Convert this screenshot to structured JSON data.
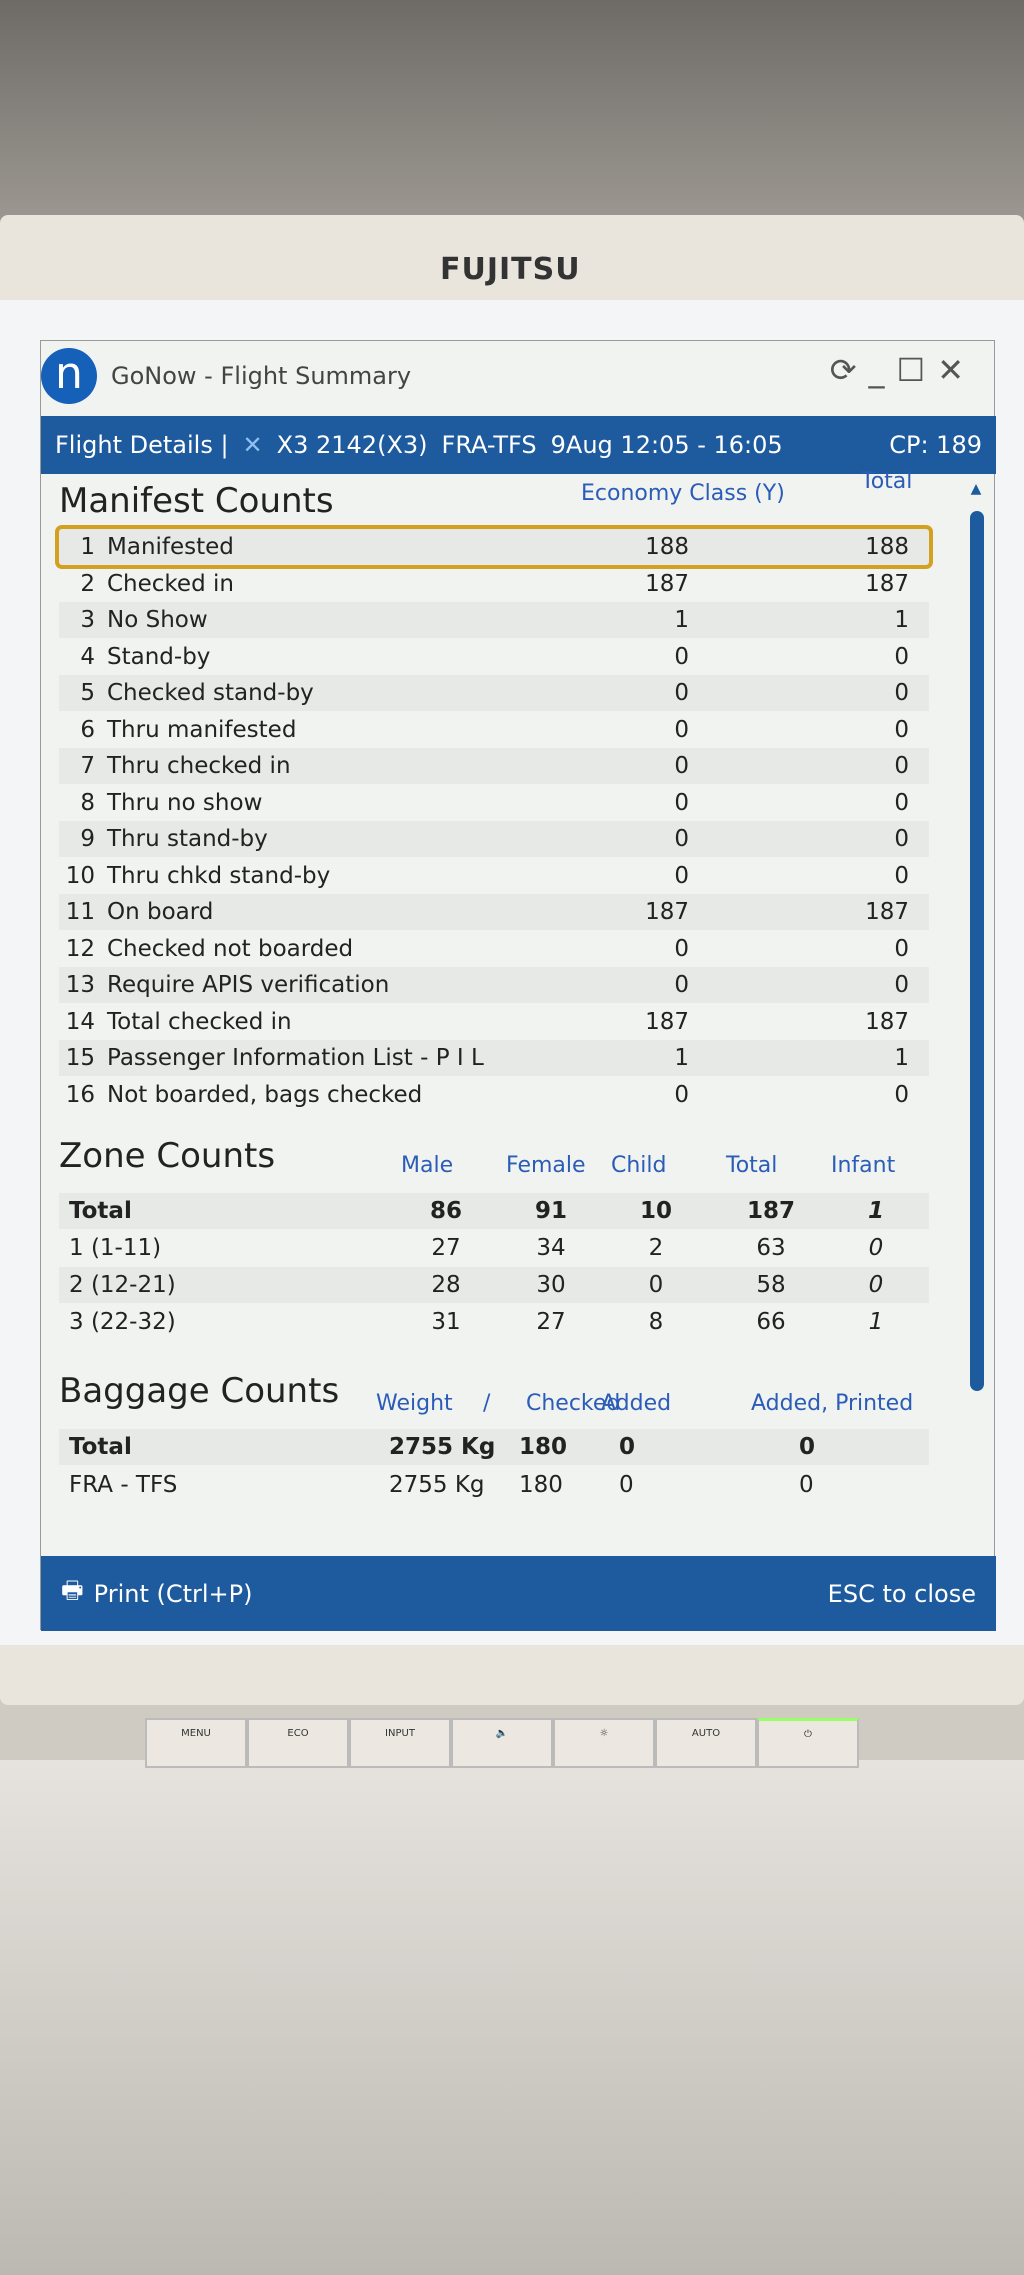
{
  "monitor": {
    "brand": "FUJITSU",
    "buttons": [
      "MENU",
      "ECO",
      "INPUT",
      "🔈",
      "☼",
      "AUTO",
      "⏻"
    ]
  },
  "window": {
    "logo": "n",
    "title": "GoNow - Flight Summary",
    "controls": [
      "⟳",
      "_",
      "☐",
      "✕"
    ]
  },
  "header": {
    "label": "Flight Details |",
    "airline_icon": "airline-logo",
    "flight": "X3 2142(X3)",
    "route": "FRA-TFS",
    "date_time": "9Aug 12:05 - 16:05",
    "cp": "CP: 189"
  },
  "manifest": {
    "title": "Manifest Counts",
    "col_economy": "Economy Class (Y)",
    "col_total": "Total",
    "selected_row": 1,
    "rows": [
      {
        "n": "1",
        "label": "Manifested",
        "y": "188",
        "t": "188"
      },
      {
        "n": "2",
        "label": "Checked in",
        "y": "187",
        "t": "187"
      },
      {
        "n": "3",
        "label": "No Show",
        "y": "1",
        "t": "1"
      },
      {
        "n": "4",
        "label": "Stand-by",
        "y": "0",
        "t": "0"
      },
      {
        "n": "5",
        "label": "Checked stand-by",
        "y": "0",
        "t": "0"
      },
      {
        "n": "6",
        "label": "Thru manifested",
        "y": "0",
        "t": "0"
      },
      {
        "n": "7",
        "label": "Thru checked in",
        "y": "0",
        "t": "0"
      },
      {
        "n": "8",
        "label": "Thru no show",
        "y": "0",
        "t": "0"
      },
      {
        "n": "9",
        "label": "Thru stand-by",
        "y": "0",
        "t": "0"
      },
      {
        "n": "10",
        "label": "Thru chkd stand-by",
        "y": "0",
        "t": "0"
      },
      {
        "n": "11",
        "label": "On board",
        "y": "187",
        "t": "187"
      },
      {
        "n": "12",
        "label": "Checked not boarded",
        "y": "0",
        "t": "0"
      },
      {
        "n": "13",
        "label": "Require APIS verification",
        "y": "0",
        "t": "0"
      },
      {
        "n": "14",
        "label": "Total checked in",
        "y": "187",
        "t": "187"
      },
      {
        "n": "15",
        "label": "Passenger Information List - P I L",
        "y": "1",
        "t": "1"
      },
      {
        "n": "16",
        "label": "Not boarded, bags checked",
        "y": "0",
        "t": "0"
      }
    ]
  },
  "zone": {
    "title": "Zone Counts",
    "cols": [
      "Male",
      "Female",
      "Child",
      "Total",
      "Infant"
    ],
    "rows": [
      {
        "label": "Total",
        "v": [
          "86",
          "91",
          "10",
          "187",
          "1"
        ]
      },
      {
        "label": "1 (1-11)",
        "v": [
          "27",
          "34",
          "2",
          "63",
          "0"
        ]
      },
      {
        "label": "2 (12-21)",
        "v": [
          "28",
          "30",
          "0",
          "58",
          "0"
        ]
      },
      {
        "label": "3 (22-32)",
        "v": [
          "31",
          "27",
          "8",
          "66",
          "1"
        ]
      }
    ]
  },
  "baggage": {
    "title": "Baggage Counts",
    "cols": [
      "Weight",
      "/",
      "Checked",
      "Added",
      "Added, Printed"
    ],
    "rows": [
      {
        "label": "Total",
        "v": [
          "2755 Kg",
          "180",
          "0",
          "0"
        ]
      },
      {
        "label": "FRA - TFS",
        "v": [
          "2755 Kg",
          "180",
          "0",
          "0"
        ]
      }
    ]
  },
  "footer": {
    "print": "Print (Ctrl+P)",
    "esc": "ESC to close"
  }
}
